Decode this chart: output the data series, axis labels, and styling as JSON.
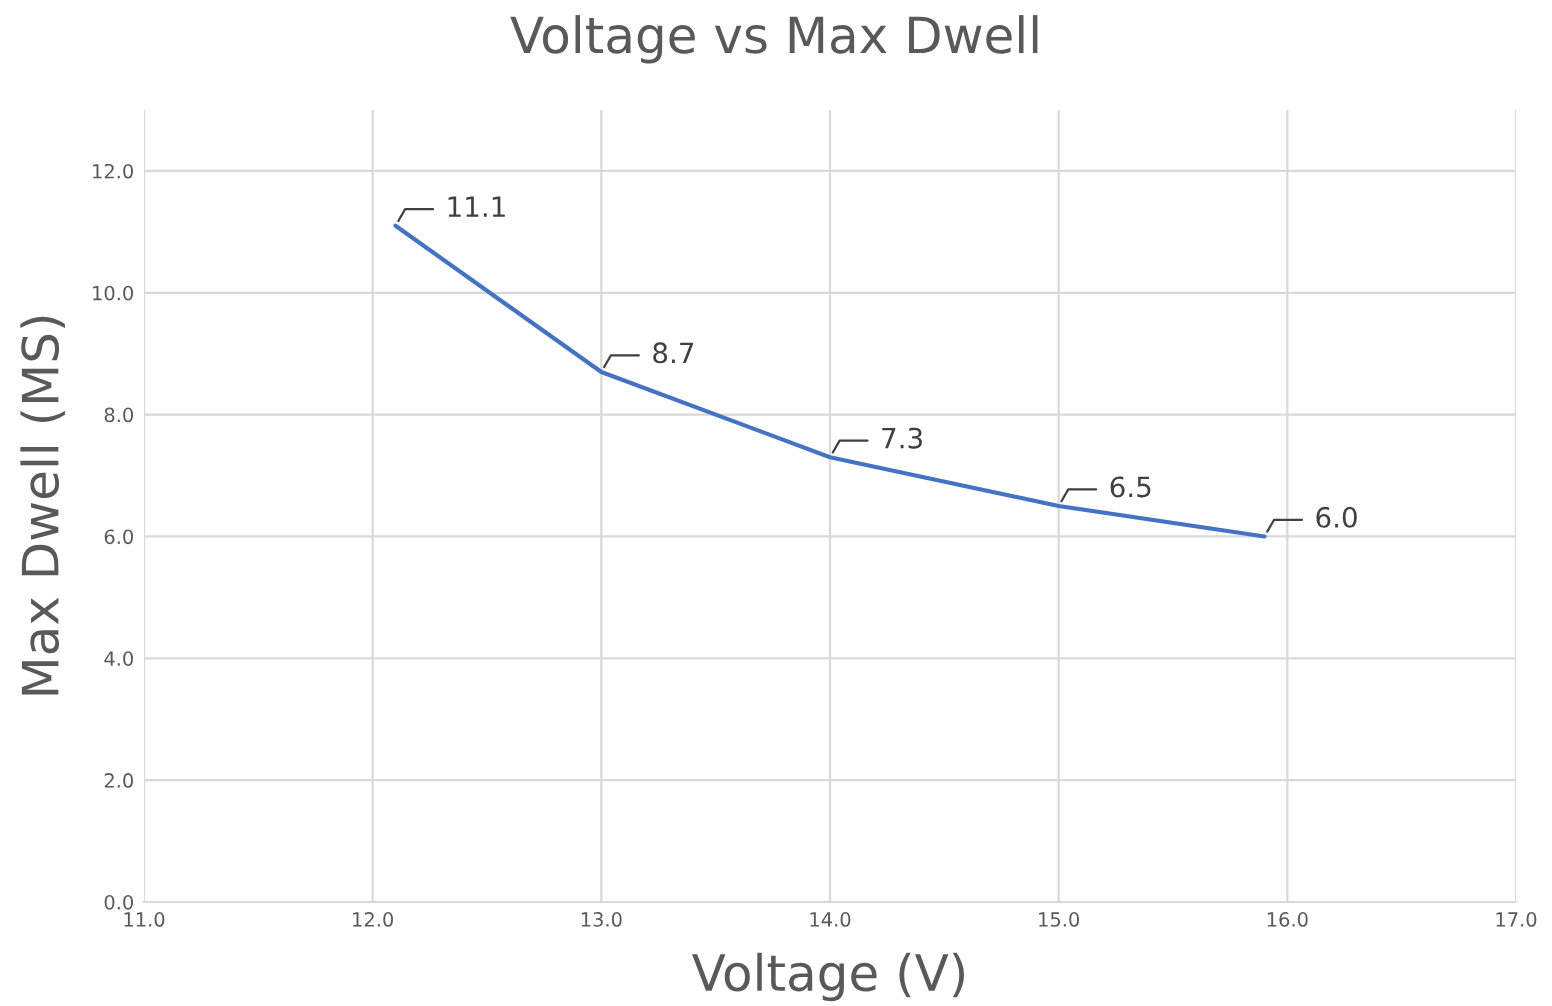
{
  "chart_data": {
    "type": "line",
    "title": "Voltage vs Max Dwell",
    "xlabel": "Voltage (V)",
    "ylabel": "Max Dwell (MS)",
    "x": [
      12.1,
      13,
      14,
      15,
      15.9
    ],
    "series": [
      {
        "color": "#4472c4",
        "values": [
          11.1,
          8.7,
          7.3,
          6.5,
          6.0
        ],
        "value_labels": [
          "11.1",
          "8.7",
          "7.3",
          "6.5",
          "6.0"
        ]
      }
    ],
    "xlim": [
      11,
      17
    ],
    "ylim": [
      0,
      13
    ],
    "xticks": [
      {
        "value": 11,
        "label": "11.0"
      },
      {
        "value": 12,
        "label": "12.0"
      },
      {
        "value": 13,
        "label": "13.0"
      },
      {
        "value": 14,
        "label": "14.0"
      },
      {
        "value": 15,
        "label": "15.0"
      },
      {
        "value": 16,
        "label": "16.0"
      },
      {
        "value": 17,
        "label": "17.0"
      }
    ],
    "yticks": [
      {
        "value": 0,
        "label": "0.0"
      },
      {
        "value": 2,
        "label": "2.0"
      },
      {
        "value": 4,
        "label": "4.0"
      },
      {
        "value": 6,
        "label": "6.0"
      },
      {
        "value": 8,
        "label": "8.0"
      },
      {
        "value": 10,
        "label": "10.0"
      },
      {
        "value": 12,
        "label": "12.0"
      }
    ],
    "grid": true,
    "marker": "none",
    "line_style": "solid",
    "legend": false
  }
}
